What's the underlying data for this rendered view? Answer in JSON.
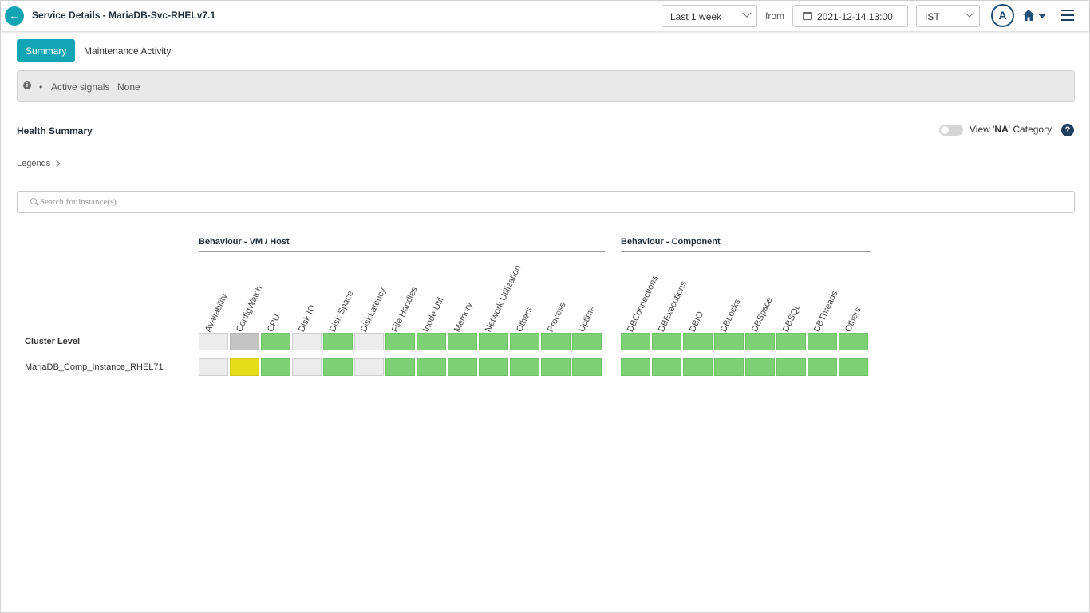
{
  "header": {
    "title": "Service Details - MariaDB-Svc-RHELv7.1",
    "period": "Last 1 week",
    "from_label": "from",
    "date": "2021-12-14 13:00",
    "timezone": "IST",
    "avatar_initial": "A"
  },
  "tabs": [
    {
      "label": "Summary",
      "active": true
    },
    {
      "label": "Maintenance Activity",
      "active": false
    }
  ],
  "signals": {
    "label": "Active signals",
    "value": "None"
  },
  "health": {
    "title": "Health Summary",
    "na_toggle_prefix": "View '",
    "na_toggle_bold": "NA",
    "na_toggle_suffix": "' Category",
    "legends_label": "Legends"
  },
  "search": {
    "placeholder": "Search for instance(s)"
  },
  "groups": [
    {
      "title": "Behaviour - VM / Host"
    },
    {
      "title": "Behaviour - Component"
    }
  ],
  "vm_columns": [
    "Availability",
    "ConfigWatch",
    "CPU",
    "Disk IO",
    "Disk Space",
    "DiskLatency",
    "File Handles",
    "Inode Util",
    "Memory",
    "Network Utilization",
    "Others",
    "Process",
    "Uptime"
  ],
  "component_columns": [
    "DBConnections",
    "DBExecutions",
    "DBIO",
    "DBLocks",
    "DBSpace",
    "DBSQL",
    "DBThreads",
    "Others"
  ],
  "rows": [
    {
      "label": "Cluster Level",
      "vm": [
        "na",
        "grey",
        "ok",
        "na",
        "ok",
        "na",
        "ok",
        "ok",
        "ok",
        "ok",
        "ok",
        "ok",
        "ok"
      ],
      "component": [
        "ok",
        "ok",
        "ok",
        "ok",
        "ok",
        "ok",
        "ok",
        "ok"
      ]
    },
    {
      "label": "MariaDB_Comp_Instance_RHEL71",
      "vm": [
        "na",
        "warn",
        "ok",
        "na",
        "ok",
        "na",
        "ok",
        "ok",
        "ok",
        "ok",
        "ok",
        "ok",
        "ok"
      ],
      "component": [
        "ok",
        "ok",
        "ok",
        "ok",
        "ok",
        "ok",
        "ok",
        "ok"
      ]
    }
  ]
}
